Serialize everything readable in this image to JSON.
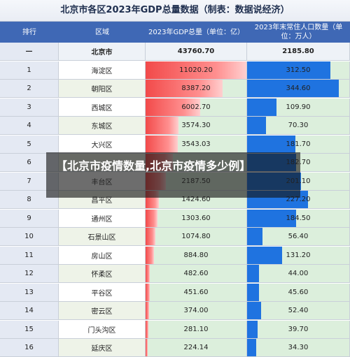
{
  "chart_data": {
    "type": "table",
    "title": "北京市各区2023年GDP总量数据（制表：数据说经济）",
    "columns": [
      "排行",
      "区域",
      "2023年GDP总量（单位：亿）",
      "2023年末常住人口数量（单位：万人）"
    ],
    "total": {
      "rank": "—",
      "district": "北京市",
      "gdp": "43760.70",
      "population": "2185.80"
    },
    "rows": [
      {
        "rank": "1",
        "district": "海淀区",
        "gdp": "11020.20",
        "population": "312.50",
        "gdp_value": 11020.2,
        "pop_value": 312.5
      },
      {
        "rank": "2",
        "district": "朝阳区",
        "gdp": "8387.20",
        "population": "344.60",
        "gdp_value": 8387.2,
        "pop_value": 344.6
      },
      {
        "rank": "3",
        "district": "西城区",
        "gdp": "6002.70",
        "population": "109.90",
        "gdp_value": 6002.7,
        "pop_value": 109.9
      },
      {
        "rank": "4",
        "district": "东城区",
        "gdp": "3574.30",
        "population": "70.30",
        "gdp_value": 3574.3,
        "pop_value": 70.3
      },
      {
        "rank": "5",
        "district": "大兴区",
        "gdp": "3543.03",
        "population": "181.70",
        "gdp_value": 3543.03,
        "pop_value": 181.7
      },
      {
        "rank": "6",
        "district": "",
        "gdp": "",
        "population": "182.70",
        "gdp_value": 3000,
        "pop_value": 182.7
      },
      {
        "rank": "7",
        "district": "丰台区",
        "gdp": "2187.50",
        "population": "201.10",
        "gdp_value": 2187.5,
        "pop_value": 201.1
      },
      {
        "rank": "8",
        "district": "昌平区",
        "gdp": "1424.60",
        "population": "227.20",
        "gdp_value": 1424.6,
        "pop_value": 227.2
      },
      {
        "rank": "9",
        "district": "通州区",
        "gdp": "1303.60",
        "population": "184.50",
        "gdp_value": 1303.6,
        "pop_value": 184.5
      },
      {
        "rank": "10",
        "district": "石景山区",
        "gdp": "1074.80",
        "population": "56.40",
        "gdp_value": 1074.8,
        "pop_value": 56.4
      },
      {
        "rank": "11",
        "district": "房山区",
        "gdp": "884.80",
        "population": "131.20",
        "gdp_value": 884.8,
        "pop_value": 131.2
      },
      {
        "rank": "12",
        "district": "怀柔区",
        "gdp": "482.60",
        "population": "44.00",
        "gdp_value": 482.6,
        "pop_value": 44.0
      },
      {
        "rank": "13",
        "district": "平谷区",
        "gdp": "451.60",
        "population": "45.60",
        "gdp_value": 451.6,
        "pop_value": 45.6
      },
      {
        "rank": "14",
        "district": "密云区",
        "gdp": "374.00",
        "population": "52.40",
        "gdp_value": 374.0,
        "pop_value": 52.4
      },
      {
        "rank": "15",
        "district": "门头沟区",
        "gdp": "281.10",
        "population": "39.70",
        "gdp_value": 281.1,
        "pop_value": 39.7
      },
      {
        "rank": "16",
        "district": "延庆区",
        "gdp": "224.14",
        "population": "34.30",
        "gdp_value": 224.14,
        "pop_value": 34.3
      }
    ],
    "gdp_max": 11020.2,
    "pop_max": 344.6
  },
  "overlay": {
    "text": "【北京市疫情数量,北京市疫情多少例】"
  },
  "colors": {
    "header": "#3f68b5",
    "gdp_bar": "#f24a4a",
    "pop_bar": "#1f73e0",
    "background_fill": "#dcefdc"
  }
}
